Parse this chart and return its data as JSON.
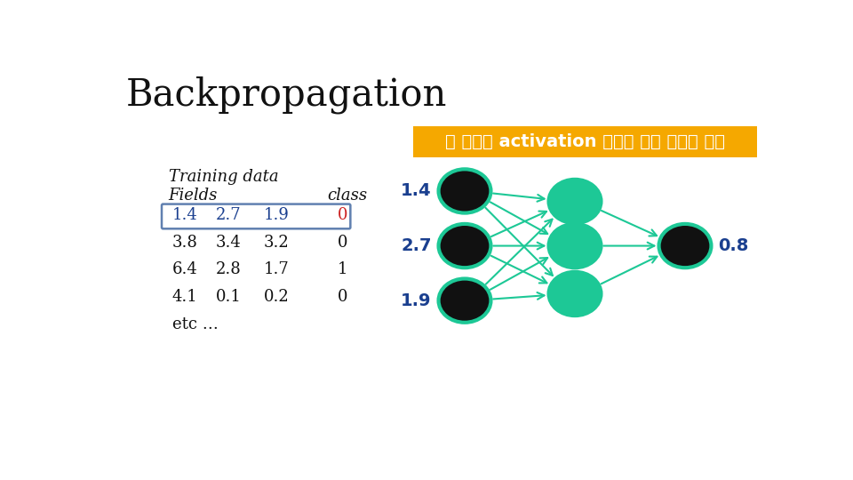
{
  "title": "Backpropagation",
  "banner_text": "각 노드의 activation 결과에 따라 출력값 계산",
  "banner_bg": "#F5A800",
  "banner_text_color": "#FFFFFF",
  "training_data_title": "Training data",
  "fields_label": "Fields",
  "class_label": "class",
  "table_rows": [
    {
      "fields": [
        "1.4",
        "2.7",
        "1.9"
      ],
      "class": "0",
      "highlight": true
    },
    {
      "fields": [
        "3.8",
        "3.4",
        "3.2"
      ],
      "class": "0",
      "highlight": false
    },
    {
      "fields": [
        "6.4",
        "2.8",
        "1.7"
      ],
      "class": "1",
      "highlight": false
    },
    {
      "fields": [
        "4.1",
        "0.1",
        "0.2"
      ],
      "class": "0",
      "highlight": false
    }
  ],
  "etc_text": "etc …",
  "input_labels": [
    "1.4",
    "2.7",
    "1.9"
  ],
  "output_label": "0.8",
  "node_color_dark": "#111111",
  "node_color_teal": "#1DC896",
  "node_outline_teal": "#1DC896",
  "arrow_color": "#1DC896",
  "label_color_blue": "#1A3F8F",
  "highlight_border": "#6080B0",
  "background_color": "#FFFFFF"
}
